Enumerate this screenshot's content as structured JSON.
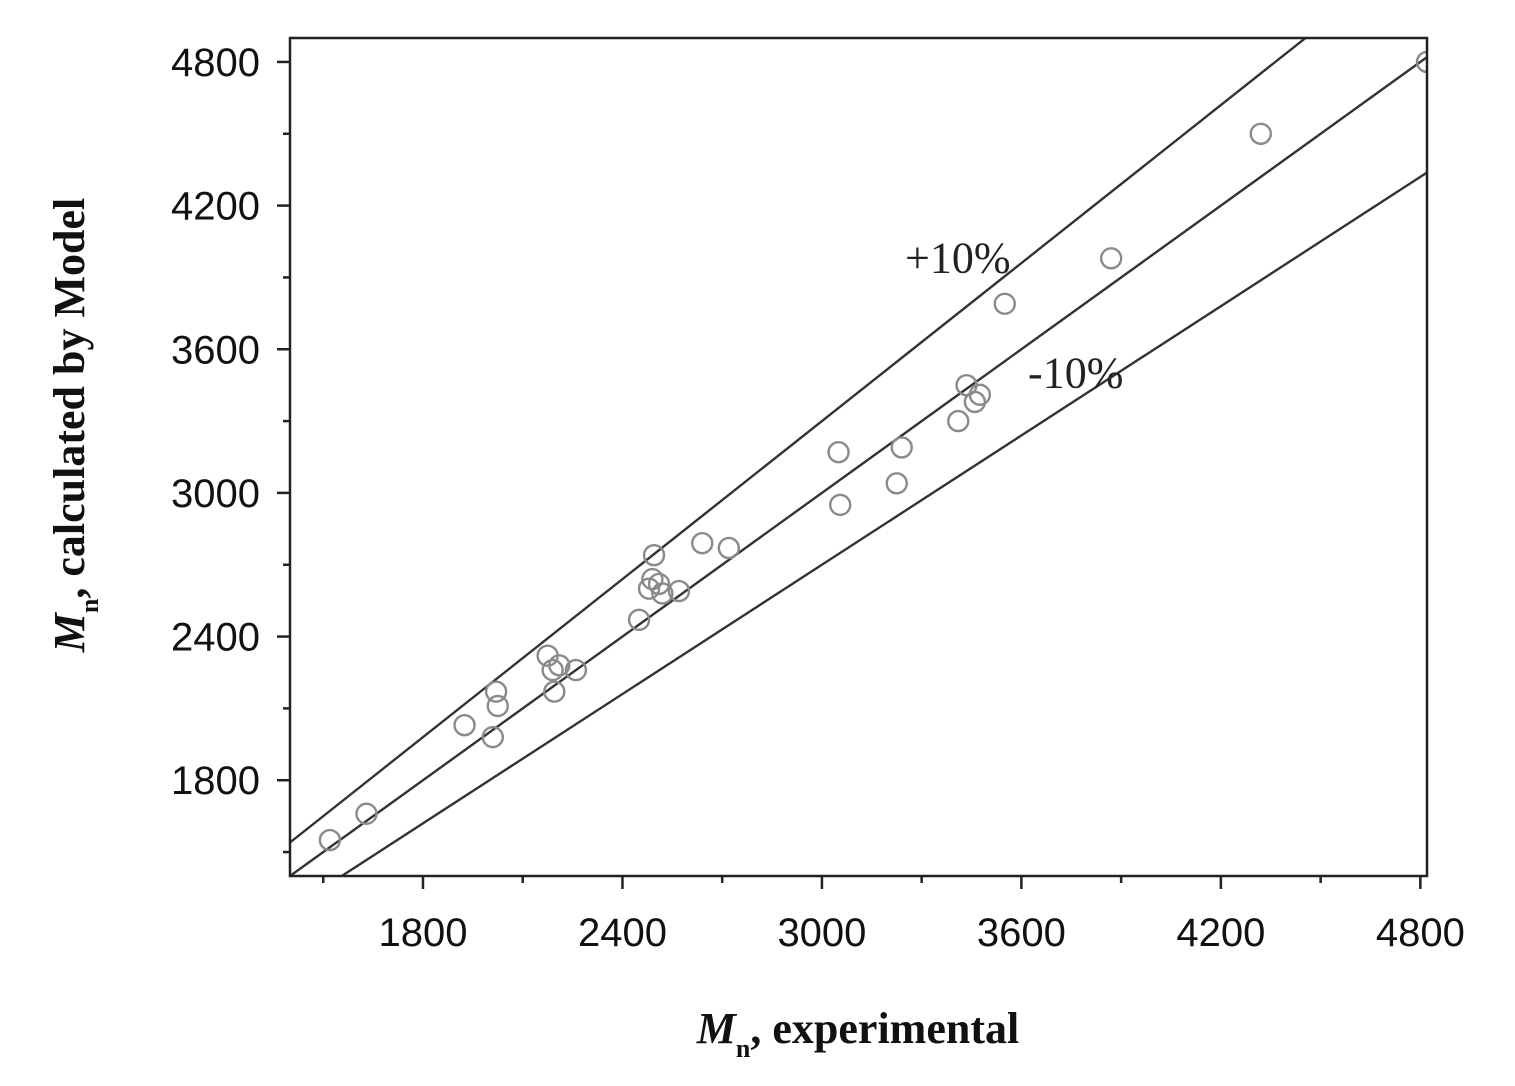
{
  "chart_data": {
    "type": "scatter",
    "xlabel": {
      "symbol": "M",
      "subscript": "n",
      "text": ", experimental"
    },
    "ylabel": {
      "symbol": "M",
      "subscript": "n",
      "text": ", calculated by Model"
    },
    "xlim": [
      1400,
      4820
    ],
    "ylim": [
      1400,
      4900
    ],
    "x_major_ticks": [
      1800,
      2400,
      3000,
      3600,
      4200,
      4800
    ],
    "x_minor_ticks": [
      1500,
      2100,
      2700,
      3300,
      3900,
      4500
    ],
    "y_major_ticks": [
      1800,
      2400,
      3000,
      3600,
      4200,
      4800
    ],
    "y_minor_ticks": [
      1500,
      2100,
      2700,
      3300,
      3900,
      4500
    ],
    "grid": false,
    "lines": [
      {
        "label": "+10%",
        "slope": 1.1,
        "label_pos": [
          3250,
          3920
        ]
      },
      {
        "label": "",
        "slope": 1.0
      },
      {
        "label": "-10%",
        "slope": 0.9,
        "label_pos": [
          3620,
          3440
        ]
      }
    ],
    "points": [
      {
        "x": 1520,
        "y": 1550
      },
      {
        "x": 1630,
        "y": 1660
      },
      {
        "x": 1925,
        "y": 2030
      },
      {
        "x": 2010,
        "y": 1980
      },
      {
        "x": 2020,
        "y": 2170
      },
      {
        "x": 2025,
        "y": 2110
      },
      {
        "x": 2175,
        "y": 2320
      },
      {
        "x": 2190,
        "y": 2260
      },
      {
        "x": 2195,
        "y": 2170
      },
      {
        "x": 2210,
        "y": 2280
      },
      {
        "x": 2260,
        "y": 2260
      },
      {
        "x": 2450,
        "y": 2470
      },
      {
        "x": 2480,
        "y": 2600
      },
      {
        "x": 2490,
        "y": 2640
      },
      {
        "x": 2495,
        "y": 2740
      },
      {
        "x": 2510,
        "y": 2620
      },
      {
        "x": 2520,
        "y": 2580
      },
      {
        "x": 2570,
        "y": 2590
      },
      {
        "x": 2640,
        "y": 2790
      },
      {
        "x": 2720,
        "y": 2770
      },
      {
        "x": 3050,
        "y": 3170
      },
      {
        "x": 3055,
        "y": 2950
      },
      {
        "x": 3225,
        "y": 3040
      },
      {
        "x": 3240,
        "y": 3190
      },
      {
        "x": 3410,
        "y": 3300
      },
      {
        "x": 3435,
        "y": 3450
      },
      {
        "x": 3460,
        "y": 3380
      },
      {
        "x": 3475,
        "y": 3410
      },
      {
        "x": 3550,
        "y": 3790
      },
      {
        "x": 3870,
        "y": 3980
      },
      {
        "x": 4320,
        "y": 4500
      },
      {
        "x": 4820,
        "y": 4800
      }
    ]
  }
}
